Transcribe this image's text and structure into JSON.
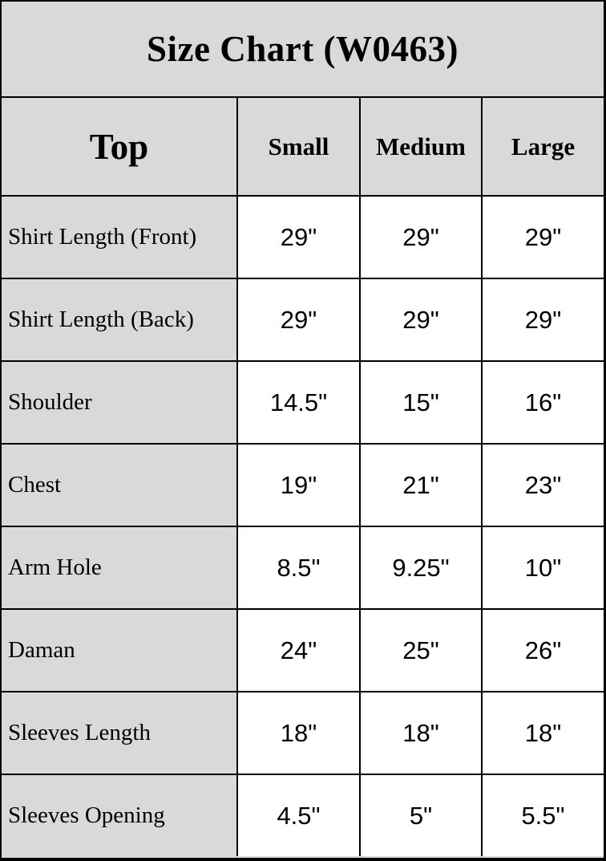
{
  "title": "Size Chart (W0463)",
  "chart_data": {
    "type": "table",
    "title": "Size Chart (W0463)",
    "columns": [
      "Top",
      "Small",
      "Medium",
      "Large"
    ],
    "rows": [
      {
        "label": "Shirt Length (Front)",
        "values": [
          "29\"",
          "29\"",
          "29\""
        ]
      },
      {
        "label": "Shirt Length (Back)",
        "values": [
          "29\"",
          "29\"",
          "29\""
        ]
      },
      {
        "label": "Shoulder",
        "values": [
          "14.5\"",
          "15\"",
          "16\""
        ]
      },
      {
        "label": "Chest",
        "values": [
          "19\"",
          "21\"",
          "23\""
        ]
      },
      {
        "label": "Arm Hole",
        "values": [
          "8.5\"",
          "9.25\"",
          "10\""
        ]
      },
      {
        "label": "Daman",
        "values": [
          "24\"",
          "25\"",
          "26\""
        ]
      },
      {
        "label": "Sleeves Length",
        "values": [
          "18\"",
          "18\"",
          "18\""
        ]
      },
      {
        "label": "Sleeves Opening",
        "values": [
          "4.5\"",
          "5\"",
          "5.5\""
        ]
      }
    ],
    "layout": {
      "header_bg": "#d9d9d9",
      "label_col_bg": "#d9d9d9",
      "value_bg": "#ffffff",
      "border_color": "#000000",
      "text_color": "#000000",
      "grid": "on",
      "legend": "none"
    }
  }
}
